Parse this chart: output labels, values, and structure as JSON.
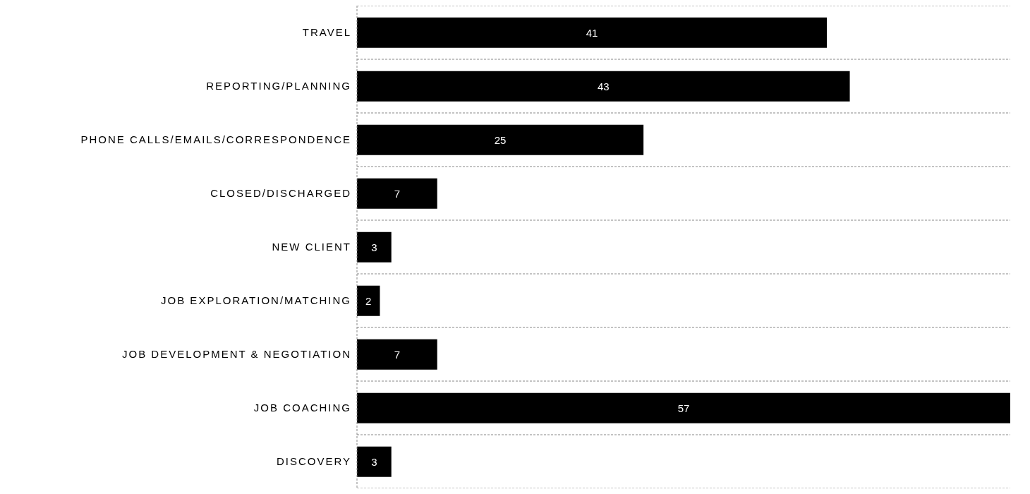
{
  "chart_data": {
    "type": "bar",
    "orientation": "horizontal",
    "categories": [
      "TRAVEL",
      "REPORTING/PLANNING",
      "PHONE CALLS/EMAILS/CORRESPONDENCE",
      "CLOSED/DISCHARGED",
      "NEW CLIENT",
      "JOB EXPLORATION/MATCHING",
      "JOB DEVELOPMENT & NEGOTIATION",
      "JOB COACHING",
      "DISCOVERY"
    ],
    "values": [
      41,
      43,
      25,
      7,
      3,
      2,
      7,
      57,
      3
    ],
    "color": "#000000",
    "data_labels": true,
    "grid": "y"
  }
}
